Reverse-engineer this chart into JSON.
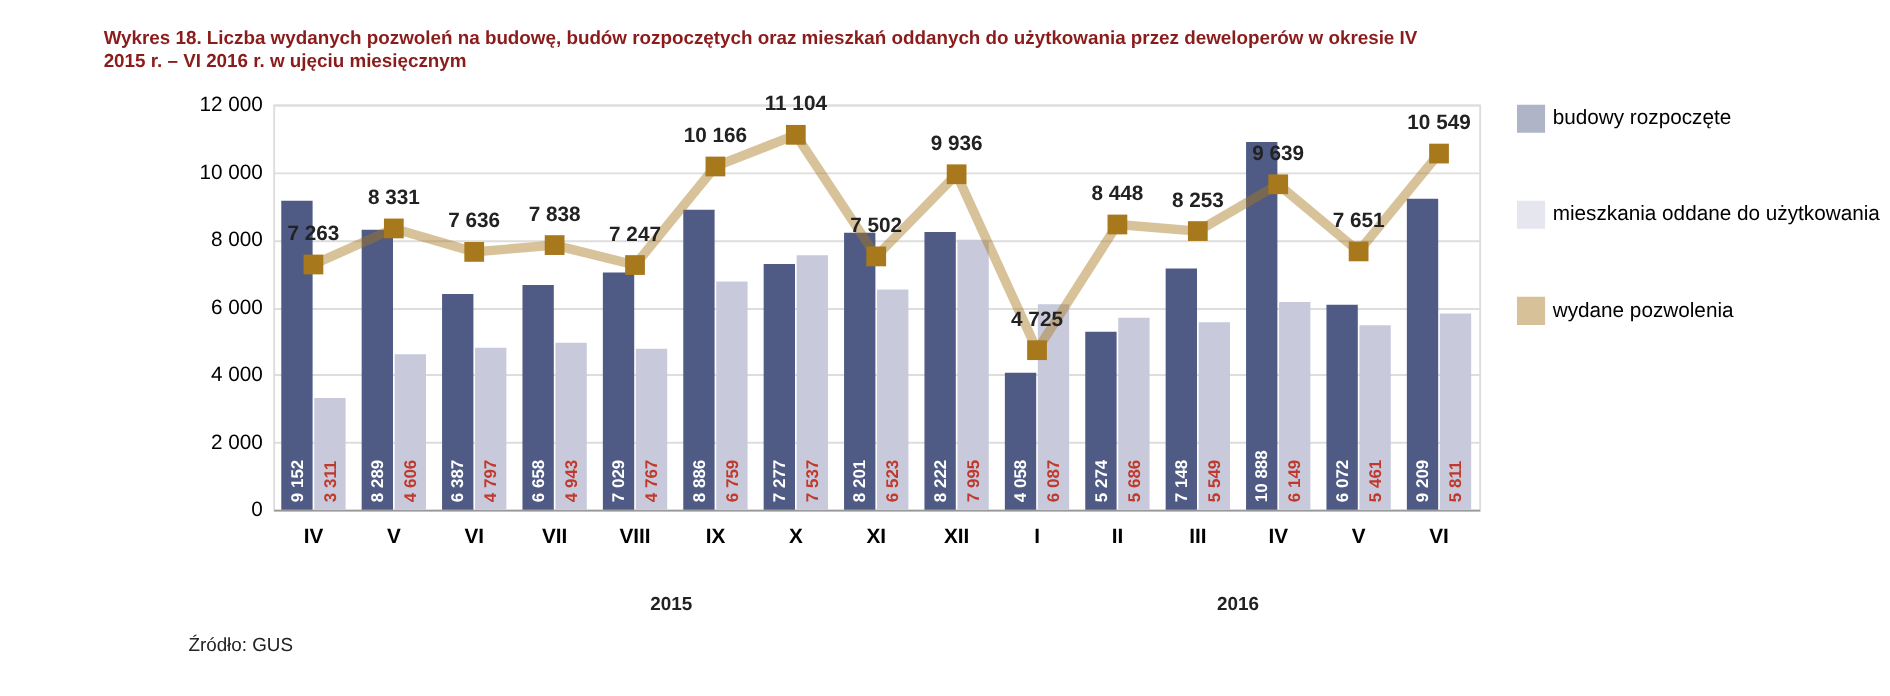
{
  "chart_data": {
    "type": "bar",
    "title": "Wykres 18. Liczba wydanych pozwoleń na budowę, budów rozpoczętych oraz mieszkań oddanych do użytkowania przez deweloperów w okresie IV 2015 r. – VI 2016 r. w ujęciu miesięcznym",
    "categories": [
      "IV",
      "V",
      "VI",
      "VII",
      "VIII",
      "IX",
      "X",
      "XI",
      "XII",
      "I",
      "II",
      "III",
      "IV",
      "V",
      "VI"
    ],
    "series": [
      {
        "name": "budowy rozpoczęte",
        "color": "#4f5b84",
        "values": [
          9152,
          8289,
          6387,
          6658,
          7029,
          8886,
          7277,
          8201,
          8222,
          4058,
          5274,
          7148,
          10888,
          6072,
          9209
        ],
        "value_labels": [
          "9 152",
          "8 289",
          "6 387",
          "6 658",
          "7 029",
          "8 886",
          "7 277",
          "8 201",
          "8 222",
          "4 058",
          "5 274",
          "7 148",
          "10 888",
          "6 072",
          "9 209"
        ]
      },
      {
        "name": "mieszkania oddane do użytkowania",
        "color": "#c8cadc",
        "values": [
          3311,
          4606,
          4797,
          4943,
          4767,
          6759,
          7537,
          6523,
          7995,
          6087,
          5686,
          5549,
          6149,
          5461,
          5811
        ],
        "value_labels": [
          "3 311",
          "4 606",
          "4 797",
          "4 943",
          "4 767",
          "6 759",
          "7 537",
          "6 523",
          "7 995",
          "6 087",
          "5 686",
          "5 549",
          "6 149",
          "5 461",
          "5 811"
        ]
      },
      {
        "name": "wydane pozwolenia",
        "type": "line",
        "color": "#a8781c",
        "marker": "square",
        "values": [
          7263,
          8331,
          7636,
          7838,
          7247,
          10166,
          11104,
          7502,
          9936,
          4725,
          8448,
          8253,
          9639,
          7651,
          10549
        ],
        "value_labels": [
          "7 263",
          "8 331",
          "7 636",
          "7 838",
          "7 247",
          "10 166",
          "11 104",
          "7 502",
          "9 936",
          "4 725",
          "8 448",
          "8 253",
          "9 639",
          "7 651",
          "10 549"
        ]
      }
    ],
    "ylim": [
      0,
      12000
    ],
    "yticks": [
      0,
      {
        "value": 2000,
        "label": "2 000"
      },
      {
        "value": 4000,
        "label": "4 000"
      },
      {
        "value": 6000,
        "label": "6 000"
      },
      {
        "value": 8000,
        "label": "8 000"
      },
      {
        "value": 10000,
        "label": "10 000"
      },
      {
        "value": 12000,
        "label": "12 000"
      }
    ],
    "grid": "y",
    "legend": "right",
    "annotations": [
      "2015",
      "2016",
      "Źródło: GUS"
    ]
  }
}
